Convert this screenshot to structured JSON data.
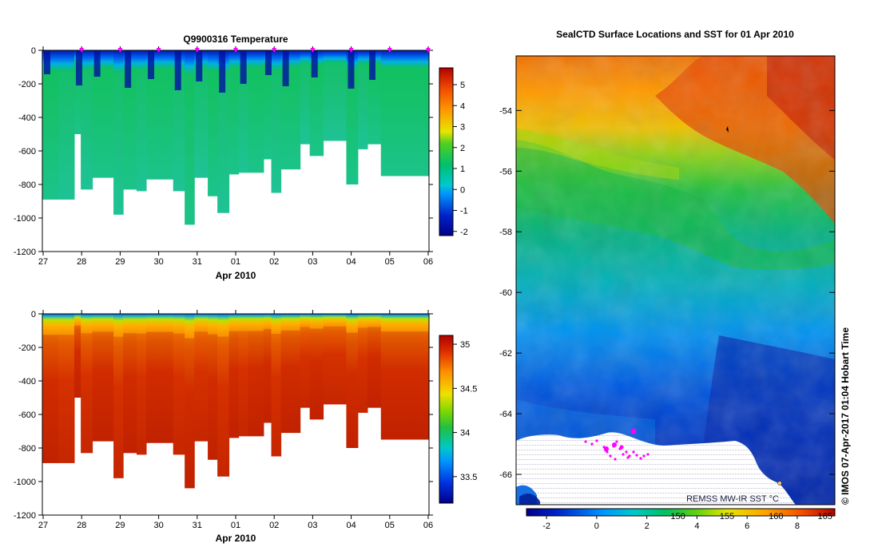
{
  "colors": {
    "magenta": "#ff00ff",
    "white": "#ffffff",
    "black": "#000000"
  },
  "chart_data": [
    {
      "type": "heatmap",
      "title": "Q9900316  Temperature",
      "xlabel": "Apr 2010",
      "ylabel": "",
      "xticks": [
        "27",
        "28",
        "29",
        "30",
        "31",
        "01",
        "02",
        "03",
        "04",
        "05",
        "06"
      ],
      "yticks": [
        "0",
        "-200",
        "-400",
        "-600",
        "-800",
        "-1000",
        "-1200"
      ],
      "ylim": [
        -1200,
        0
      ],
      "xlim_days": [
        0,
        10.05
      ],
      "colorbar": {
        "ticks": [
          "-2",
          "-1",
          "0",
          "1",
          "2",
          "3",
          "4",
          "5"
        ],
        "range": [
          -2.2,
          5.8
        ]
      },
      "profile_depths": [
        -890,
        -890,
        -500,
        -830,
        -760,
        -980,
        -830,
        -840,
        -770,
        -770,
        -840,
        -1040,
        -760,
        -870,
        -970,
        -740,
        -730,
        -730,
        -650,
        -850,
        -710,
        -560,
        -630,
        -540,
        -800,
        -590,
        -560,
        -750
      ],
      "profile_times": [
        0.0,
        0.42,
        0.83,
        1.0,
        1.3,
        1.85,
        2.1,
        2.45,
        2.7,
        3.05,
        3.4,
        3.7,
        3.95,
        4.3,
        4.55,
        4.85,
        5.1,
        5.35,
        5.75,
        5.95,
        6.2,
        6.7,
        6.95,
        7.3,
        7.9,
        8.2,
        8.45,
        8.8
      ],
      "surface_markers": [
        1,
        2,
        3,
        4,
        5,
        6,
        7,
        8,
        9,
        10
      ]
    },
    {
      "type": "heatmap",
      "title": "",
      "xlabel": "Apr 2010",
      "ylabel": "",
      "xticks": [
        "27",
        "28",
        "29",
        "30",
        "31",
        "01",
        "02",
        "03",
        "04",
        "05",
        "06"
      ],
      "yticks": [
        "0",
        "-200",
        "-400",
        "-600",
        "-800",
        "-1000",
        "-1200"
      ],
      "ylim": [
        -1200,
        0
      ],
      "colorbar": {
        "ticks": [
          "33.5",
          "34",
          "34.5",
          "35"
        ],
        "range": [
          33.2,
          35.1
        ]
      }
    },
    {
      "type": "heatmap",
      "title": "SealCTD Surface Locations and SST for 01 Apr 2010",
      "yticks": [
        "-54",
        "-56",
        "-58",
        "-60",
        "-62",
        "-64",
        "-66"
      ],
      "ylim": [
        -67,
        -52.2
      ],
      "xlim": [
        133.5,
        166
      ],
      "colorbar_bottom_ticks": [
        "-2",
        "0",
        "2",
        "4",
        "6",
        "8"
      ],
      "colorbar_top_ticks": [
        "150",
        "155",
        "160",
        "165"
      ],
      "colorbar_range": [
        -2.8,
        9.5
      ],
      "annotation": "REMSS MW-IR SST °C",
      "credit": "© IMOS 07-Apr-2017 01:04 Hobart Time"
    }
  ]
}
